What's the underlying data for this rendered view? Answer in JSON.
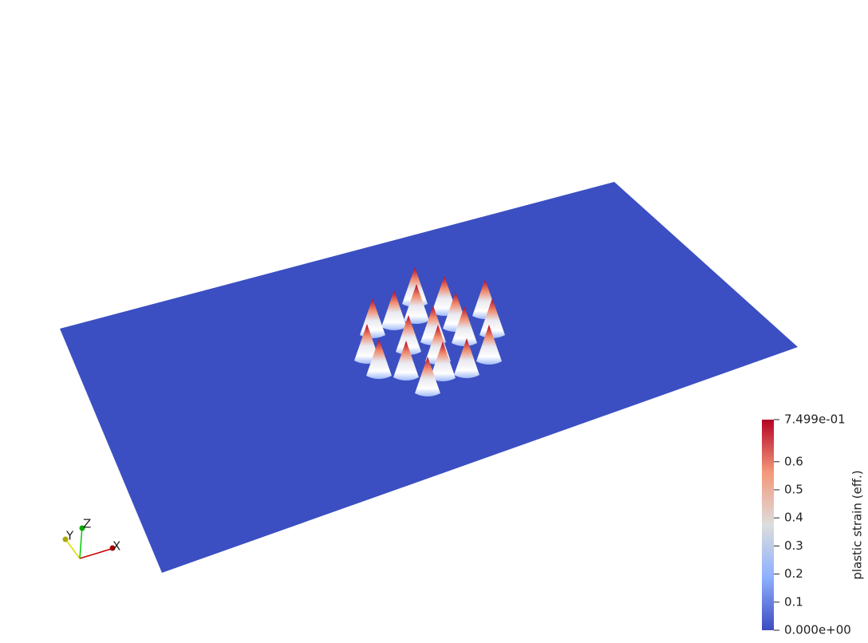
{
  "colorbar": {
    "title": "plastic strain (eff.)",
    "min": {
      "value": 0,
      "label": "0.000e+00"
    },
    "max": {
      "value": 0.7499,
      "label": "7.499e-01"
    },
    "ticks": [
      0.1,
      0.2,
      0.3,
      0.4,
      0.5,
      0.6
    ]
  },
  "axes": {
    "x": "X",
    "y": "Y",
    "z": "Z"
  }
}
